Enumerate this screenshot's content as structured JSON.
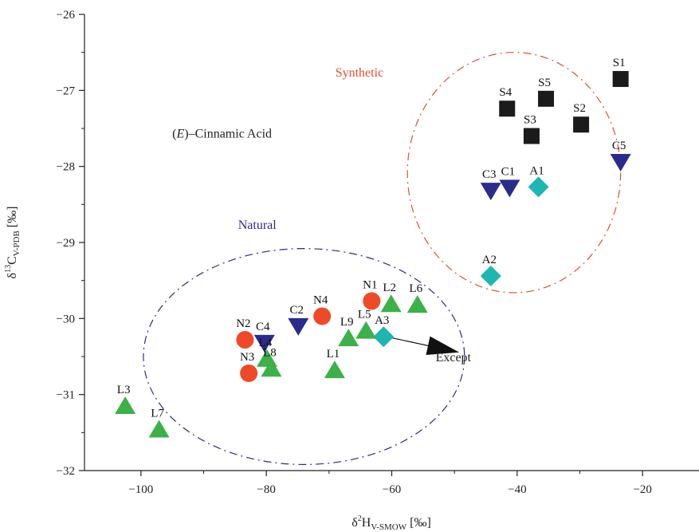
{
  "chart_data": {
    "type": "scatter",
    "xlabel": {
      "main": "δ",
      "sup": "2",
      "base": "H",
      "sub": "V-SMOW",
      "unit": " [‰]"
    },
    "ylabel": {
      "main": "δ",
      "sup": "13",
      "base": "C",
      "sub": "V-PDB",
      "unit": " [‰]"
    },
    "xlim": [
      -109,
      -11
    ],
    "ylim": [
      -32,
      -26
    ],
    "xticks": [
      -100,
      -80,
      -60,
      -40,
      -20
    ],
    "yticks": [
      -32,
      -31,
      -30,
      -29,
      -28,
      -27,
      -26
    ],
    "grid": false,
    "annotations": {
      "compound": {
        "open": "(",
        "italic": "E",
        "rest": ")–Cinnamic Acid",
        "x": -95,
        "y": -27.62
      },
      "except": {
        "text": "Except",
        "x": -53,
        "y": -30.5,
        "arrow_from": [
          -60.8,
          -30.24
        ],
        "arrow_to": [
          -49.5,
          -30.44
        ]
      }
    },
    "groups": [
      {
        "name": "Synthetic",
        "color": "#e05030",
        "center": [
          -40.5,
          -28.08
        ],
        "radius": [
          17,
          1.58
        ],
        "label_x": -69,
        "label_y": -26.82
      },
      {
        "name": "Natural",
        "color": "#2a2a8c",
        "center": [
          -74,
          -30.5
        ],
        "radius": [
          25.6,
          1.42
        ],
        "label_x": -84.5,
        "label_y": -28.82
      }
    ],
    "series": [
      {
        "marker": "square",
        "color": "#1b1b1b",
        "points": [
          {
            "label": "S1",
            "x": -23.5,
            "y": -26.85
          },
          {
            "label": "S2",
            "x": -29.8,
            "y": -27.45
          },
          {
            "label": "S3",
            "x": -37.7,
            "y": -27.6
          },
          {
            "label": "S4",
            "x": -41.6,
            "y": -27.24
          },
          {
            "label": "S5",
            "x": -35.4,
            "y": -27.11
          }
        ]
      },
      {
        "marker": "triangle-down",
        "color": "#2b2b8c",
        "points": [
          {
            "label": "C1",
            "x": -41.2,
            "y": -28.28
          },
          {
            "label": "C2",
            "x": -74.9,
            "y": -30.1
          },
          {
            "label": "C3",
            "x": -44.2,
            "y": -28.32
          },
          {
            "label": "C4",
            "x": -80.3,
            "y": -30.32
          },
          {
            "label": "C5",
            "x": -23.5,
            "y": -27.94
          }
        ]
      },
      {
        "marker": "diamond",
        "color": "#1fb5b0",
        "points": [
          {
            "label": "A1",
            "x": -36.6,
            "y": -28.27
          },
          {
            "label": "A2",
            "x": -44.2,
            "y": -29.44
          },
          {
            "label": "A3",
            "x": -61.3,
            "y": -30.24
          }
        ]
      },
      {
        "marker": "circle",
        "color": "#ee4a2a",
        "points": [
          {
            "label": "N1",
            "x": -63.2,
            "y": -29.77
          },
          {
            "label": "N2",
            "x": -83.4,
            "y": -30.28
          },
          {
            "label": "N3",
            "x": -82.8,
            "y": -30.72
          },
          {
            "label": "N4",
            "x": -71.1,
            "y": -29.97
          }
        ]
      },
      {
        "marker": "triangle-up",
        "color": "#3db04a",
        "points": [
          {
            "label": "L1",
            "x": -69.1,
            "y": -30.68
          },
          {
            "label": "L2",
            "x": -60.1,
            "y": -29.81
          },
          {
            "label": "L3",
            "x": -102.5,
            "y": -31.15
          },
          {
            "label": "L4",
            "x": -79.9,
            "y": -30.53
          },
          {
            "label": "L5",
            "x": -64.1,
            "y": -30.16
          },
          {
            "label": "L6",
            "x": -55.9,
            "y": -29.82
          },
          {
            "label": "L7",
            "x": -97.1,
            "y": -31.46
          },
          {
            "label": "L8",
            "x": -79.2,
            "y": -30.66
          },
          {
            "label": "L9",
            "x": -66.9,
            "y": -30.26
          }
        ]
      }
    ]
  }
}
